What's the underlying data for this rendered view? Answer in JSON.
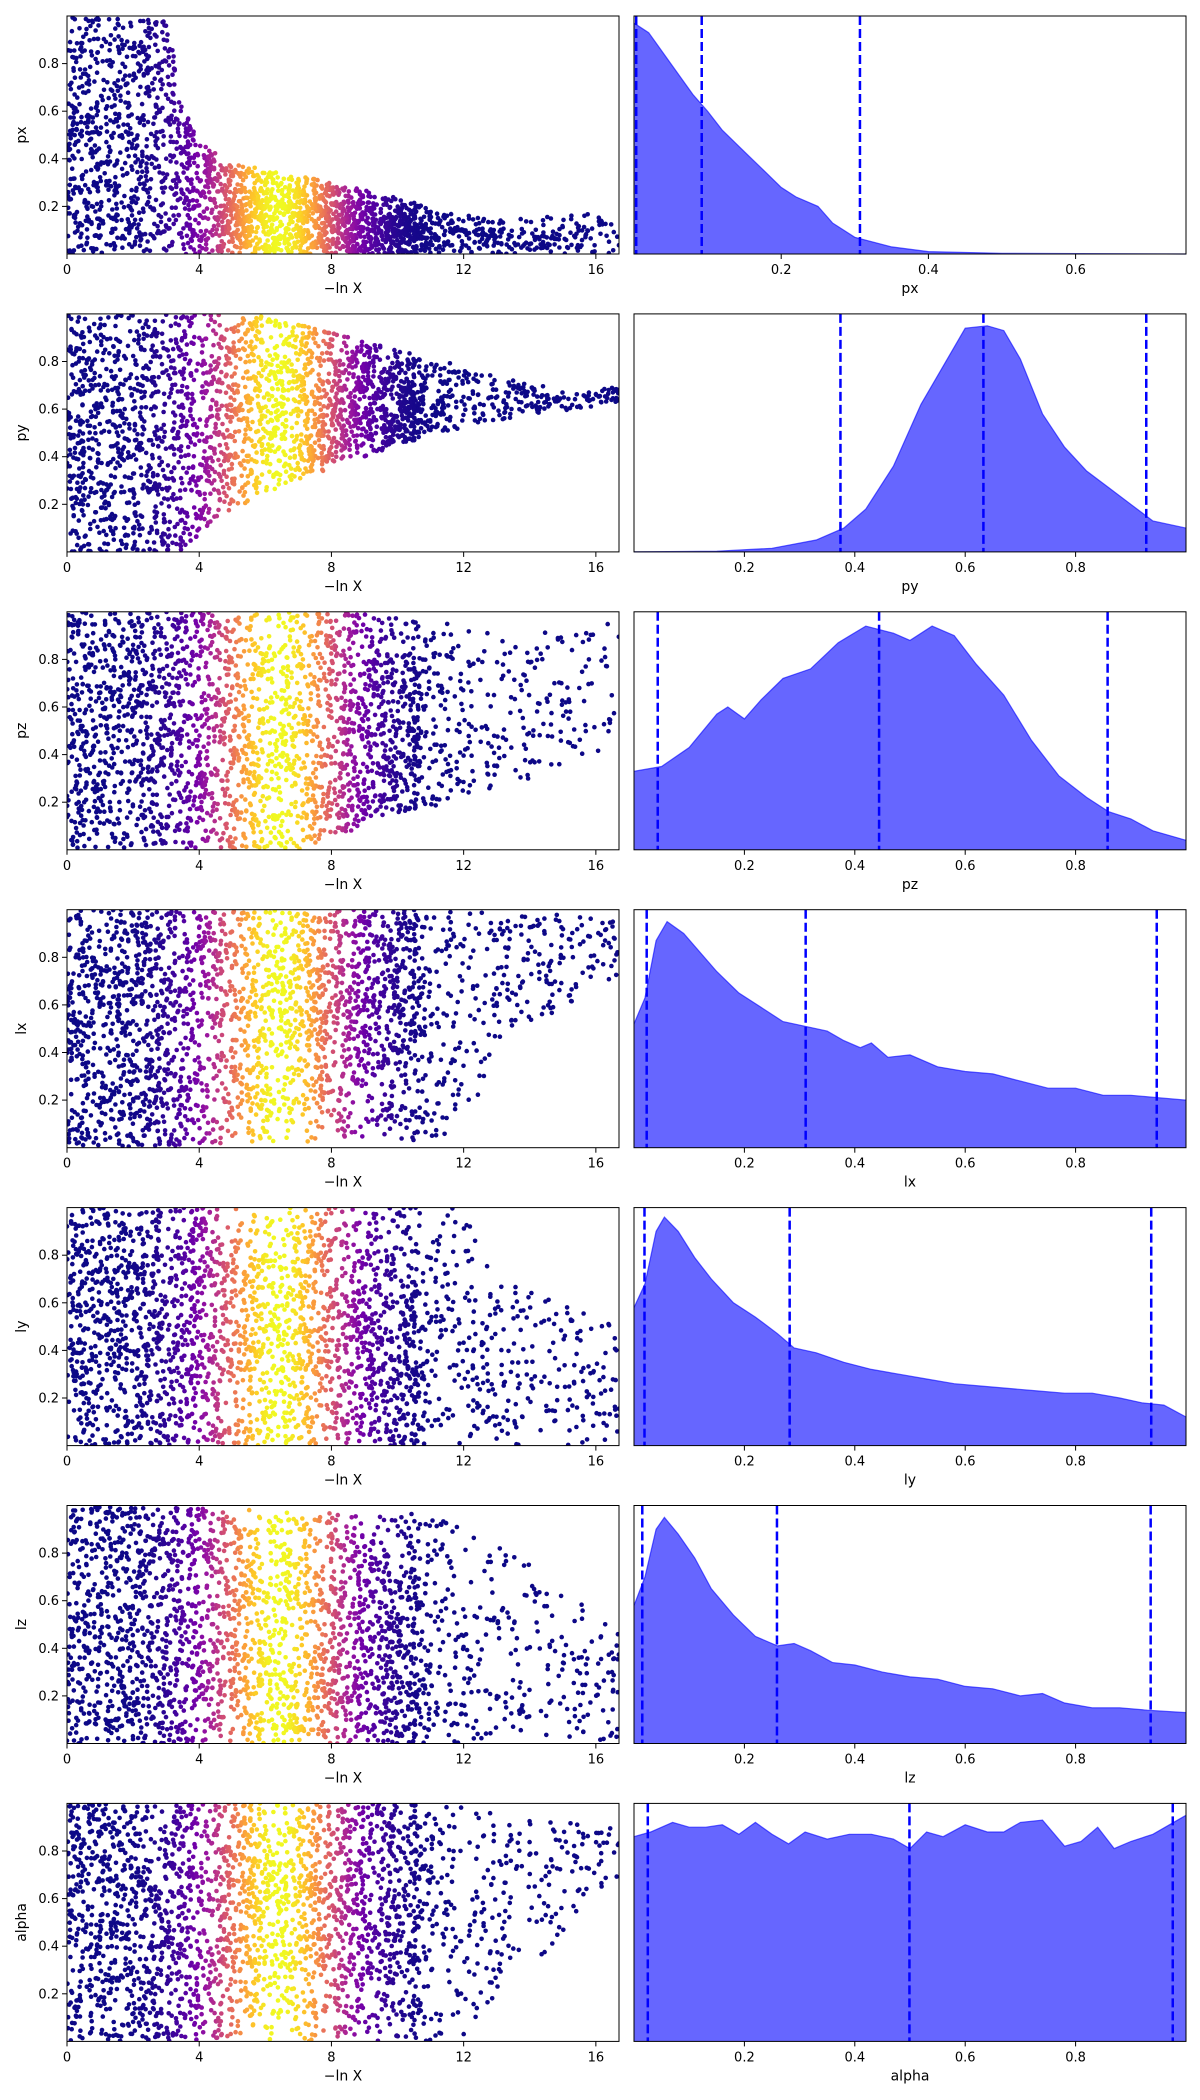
{
  "figure": {
    "trace_xlabel": "−ln X",
    "trace_xticks": [
      "0",
      "4",
      "8",
      "12",
      "16"
    ],
    "trace_xlim": [
      0,
      16.7
    ],
    "trace_ylim": [
      0,
      1
    ],
    "colormap": [
      "#0d0887",
      "#46039f",
      "#7201a8",
      "#9c179e",
      "#bd3786",
      "#d8576b",
      "#ed7953",
      "#fb9f3a",
      "#fdca26",
      "#f0f921"
    ],
    "posterior_fill": "#6666ff",
    "posterior_line": "#0000ff"
  },
  "chart_data": [
    {
      "type": "scatter",
      "param": "px",
      "xlabel": "−ln X",
      "ylabel": "px",
      "xlim": [
        0,
        16.7
      ],
      "ylim": [
        0,
        1
      ],
      "yticks": [
        "0.2",
        "0.4",
        "0.6",
        "0.8"
      ],
      "y_envelope": [
        [
          0,
          1.0
        ],
        [
          3.0,
          0.98
        ],
        [
          3.6,
          0.6
        ],
        [
          4.0,
          0.47
        ],
        [
          5.0,
          0.38
        ],
        [
          7.0,
          0.33
        ],
        [
          9.0,
          0.27
        ],
        [
          11.0,
          0.2
        ],
        [
          13.0,
          0.14
        ],
        [
          16.7,
          0.18
        ]
      ],
      "y_center": [
        [
          0,
          0.5
        ],
        [
          4.0,
          0.2
        ],
        [
          6.0,
          0.15
        ],
        [
          10.0,
          0.1
        ],
        [
          16.7,
          0.05
        ]
      ]
    },
    {
      "type": "area",
      "param": "px",
      "xlabel": "px",
      "xlim": [
        0.0,
        0.75
      ],
      "xticks": [
        "0.2",
        "0.4",
        "0.6"
      ],
      "quantiles": [
        0.003,
        0.092,
        0.307
      ],
      "density": [
        [
          0.0,
          0.97
        ],
        [
          0.02,
          0.93
        ],
        [
          0.05,
          0.8
        ],
        [
          0.08,
          0.67
        ],
        [
          0.1,
          0.6
        ],
        [
          0.12,
          0.52
        ],
        [
          0.15,
          0.43
        ],
        [
          0.18,
          0.34
        ],
        [
          0.2,
          0.28
        ],
        [
          0.22,
          0.24
        ],
        [
          0.25,
          0.2
        ],
        [
          0.27,
          0.13
        ],
        [
          0.3,
          0.07
        ],
        [
          0.35,
          0.03
        ],
        [
          0.4,
          0.01
        ],
        [
          0.5,
          0.003
        ],
        [
          0.75,
          0.0
        ]
      ]
    },
    {
      "type": "scatter",
      "param": "py",
      "xlabel": "−ln X",
      "ylabel": "py",
      "xlim": [
        0,
        16.7
      ],
      "ylim": [
        0,
        1
      ],
      "yticks": [
        "0.2",
        "0.4",
        "0.6",
        "0.8"
      ],
      "y_envelope": [
        [
          0,
          0.0,
          1.0
        ],
        [
          3.5,
          0.0,
          1.0
        ],
        [
          4.2,
          0.1,
          1.0
        ],
        [
          6.0,
          0.25,
          0.99
        ],
        [
          8.0,
          0.35,
          0.92
        ],
        [
          10.0,
          0.45,
          0.85
        ],
        [
          12.0,
          0.52,
          0.78
        ],
        [
          14.0,
          0.58,
          0.7
        ],
        [
          16.7,
          0.62,
          0.69
        ]
      ],
      "y_center": [
        [
          0,
          0.5
        ],
        [
          6.0,
          0.6
        ],
        [
          10.0,
          0.62
        ],
        [
          16.7,
          0.66
        ]
      ]
    },
    {
      "type": "area",
      "param": "py",
      "xlabel": "py",
      "xlim": [
        0.0,
        1.0
      ],
      "xticks": [
        "0.2",
        "0.4",
        "0.6",
        "0.8"
      ],
      "quantiles": [
        0.374,
        0.633,
        0.928
      ],
      "density": [
        [
          0.0,
          0.0
        ],
        [
          0.15,
          0.003
        ],
        [
          0.25,
          0.015
        ],
        [
          0.33,
          0.05
        ],
        [
          0.38,
          0.1
        ],
        [
          0.42,
          0.18
        ],
        [
          0.47,
          0.36
        ],
        [
          0.52,
          0.62
        ],
        [
          0.56,
          0.78
        ],
        [
          0.6,
          0.94
        ],
        [
          0.64,
          0.95
        ],
        [
          0.67,
          0.93
        ],
        [
          0.7,
          0.81
        ],
        [
          0.74,
          0.58
        ],
        [
          0.78,
          0.44
        ],
        [
          0.82,
          0.34
        ],
        [
          0.86,
          0.27
        ],
        [
          0.9,
          0.2
        ],
        [
          0.94,
          0.13
        ],
        [
          1.0,
          0.1
        ]
      ]
    },
    {
      "type": "scatter",
      "param": "pz",
      "xlabel": "−ln X",
      "ylabel": "pz",
      "xlim": [
        0,
        16.7
      ],
      "ylim": [
        0,
        1
      ],
      "yticks": [
        "0.2",
        "0.4",
        "0.6",
        "0.8"
      ],
      "y_envelope": [
        [
          0,
          0.0,
          1.0
        ],
        [
          7.0,
          0.0,
          1.0
        ],
        [
          8.0,
          0.05,
          1.0
        ],
        [
          10.0,
          0.15,
          0.98
        ],
        [
          12.0,
          0.2,
          0.95
        ],
        [
          14.0,
          0.3,
          0.9
        ],
        [
          16.7,
          0.45,
          0.98
        ]
      ],
      "y_center": [
        [
          0,
          0.5
        ],
        [
          8.0,
          0.48
        ],
        [
          12.0,
          0.52
        ],
        [
          16.7,
          0.7
        ]
      ]
    },
    {
      "type": "area",
      "param": "pz",
      "xlabel": "pz",
      "xlim": [
        0.0,
        1.0
      ],
      "xticks": [
        "0.2",
        "0.4",
        "0.6",
        "0.8"
      ],
      "quantiles": [
        0.043,
        0.444,
        0.858
      ],
      "density": [
        [
          0.0,
          0.33
        ],
        [
          0.05,
          0.35
        ],
        [
          0.1,
          0.43
        ],
        [
          0.15,
          0.57
        ],
        [
          0.17,
          0.6
        ],
        [
          0.2,
          0.55
        ],
        [
          0.23,
          0.63
        ],
        [
          0.27,
          0.72
        ],
        [
          0.32,
          0.76
        ],
        [
          0.37,
          0.87
        ],
        [
          0.42,
          0.94
        ],
        [
          0.47,
          0.91
        ],
        [
          0.5,
          0.88
        ],
        [
          0.54,
          0.94
        ],
        [
          0.58,
          0.9
        ],
        [
          0.62,
          0.78
        ],
        [
          0.67,
          0.65
        ],
        [
          0.72,
          0.46
        ],
        [
          0.77,
          0.31
        ],
        [
          0.82,
          0.22
        ],
        [
          0.86,
          0.16
        ],
        [
          0.9,
          0.13
        ],
        [
          0.94,
          0.08
        ],
        [
          1.0,
          0.04
        ]
      ]
    },
    {
      "type": "scatter",
      "param": "lx",
      "xlabel": "−ln X",
      "ylabel": "lx",
      "xlim": [
        0,
        16.7
      ],
      "ylim": [
        0,
        1
      ],
      "yticks": [
        "0.2",
        "0.4",
        "0.6",
        "0.8"
      ],
      "y_envelope": [
        [
          0,
          0.0,
          1.0
        ],
        [
          12.0,
          0.03,
          1.0
        ],
        [
          13.0,
          0.45,
          0.98
        ],
        [
          16.7,
          0.7,
          0.98
        ]
      ],
      "y_center": [
        [
          0,
          0.5
        ],
        [
          16.7,
          0.85
        ]
      ]
    },
    {
      "type": "area",
      "param": "lx",
      "xlabel": "lx",
      "xlim": [
        0.0,
        1.0
      ],
      "xticks": [
        "0.2",
        "0.4",
        "0.6",
        "0.8"
      ],
      "quantiles": [
        0.023,
        0.311,
        0.947
      ],
      "density": [
        [
          0.0,
          0.52
        ],
        [
          0.02,
          0.63
        ],
        [
          0.04,
          0.87
        ],
        [
          0.06,
          0.95
        ],
        [
          0.09,
          0.9
        ],
        [
          0.12,
          0.82
        ],
        [
          0.15,
          0.74
        ],
        [
          0.19,
          0.65
        ],
        [
          0.23,
          0.59
        ],
        [
          0.27,
          0.53
        ],
        [
          0.31,
          0.51
        ],
        [
          0.35,
          0.49
        ],
        [
          0.38,
          0.45
        ],
        [
          0.41,
          0.42
        ],
        [
          0.43,
          0.44
        ],
        [
          0.46,
          0.38
        ],
        [
          0.5,
          0.39
        ],
        [
          0.55,
          0.34
        ],
        [
          0.6,
          0.32
        ],
        [
          0.65,
          0.31
        ],
        [
          0.7,
          0.28
        ],
        [
          0.75,
          0.25
        ],
        [
          0.8,
          0.25
        ],
        [
          0.85,
          0.22
        ],
        [
          0.9,
          0.22
        ],
        [
          0.95,
          0.21
        ],
        [
          1.0,
          0.2
        ]
      ]
    },
    {
      "type": "scatter",
      "param": "ly",
      "xlabel": "−ln X",
      "ylabel": "ly",
      "xlim": [
        0,
        16.7
      ],
      "ylim": [
        0,
        1
      ],
      "yticks": [
        "0.2",
        "0.4",
        "0.6",
        "0.8"
      ],
      "y_envelope": [
        [
          0,
          0.0,
          1.0
        ],
        [
          12.0,
          0.0,
          1.0
        ],
        [
          13.0,
          0.0,
          0.7
        ],
        [
          16.7,
          0.0,
          0.5
        ]
      ],
      "y_center": [
        [
          0,
          0.5
        ],
        [
          16.7,
          0.25
        ]
      ]
    },
    {
      "type": "area",
      "param": "ly",
      "xlabel": "ly",
      "xlim": [
        0.0,
        1.0
      ],
      "xticks": [
        "0.2",
        "0.4",
        "0.6",
        "0.8"
      ],
      "quantiles": [
        0.019,
        0.282,
        0.937
      ],
      "density": [
        [
          0.0,
          0.58
        ],
        [
          0.02,
          0.68
        ],
        [
          0.04,
          0.9
        ],
        [
          0.055,
          0.96
        ],
        [
          0.08,
          0.9
        ],
        [
          0.11,
          0.79
        ],
        [
          0.14,
          0.7
        ],
        [
          0.18,
          0.6
        ],
        [
          0.22,
          0.54
        ],
        [
          0.26,
          0.47
        ],
        [
          0.29,
          0.41
        ],
        [
          0.33,
          0.39
        ],
        [
          0.38,
          0.35
        ],
        [
          0.43,
          0.32
        ],
        [
          0.48,
          0.3
        ],
        [
          0.53,
          0.28
        ],
        [
          0.58,
          0.26
        ],
        [
          0.63,
          0.25
        ],
        [
          0.68,
          0.24
        ],
        [
          0.73,
          0.23
        ],
        [
          0.78,
          0.22
        ],
        [
          0.83,
          0.22
        ],
        [
          0.88,
          0.2
        ],
        [
          0.92,
          0.18
        ],
        [
          0.96,
          0.17
        ],
        [
          1.0,
          0.12
        ]
      ]
    },
    {
      "type": "scatter",
      "param": "lz",
      "xlabel": "−ln X",
      "ylabel": "lz",
      "xlim": [
        0,
        16.7
      ],
      "ylim": [
        0,
        1
      ],
      "yticks": [
        "0.2",
        "0.4",
        "0.6",
        "0.8"
      ],
      "y_envelope": [
        [
          0,
          0.0,
          1.0
        ],
        [
          12.0,
          0.0,
          0.96
        ],
        [
          14.0,
          0.0,
          0.75
        ],
        [
          16.7,
          0.0,
          0.5
        ]
      ],
      "y_center": [
        [
          0,
          0.45
        ],
        [
          16.7,
          0.2
        ]
      ]
    },
    {
      "type": "area",
      "param": "lz",
      "xlabel": "lz",
      "xlim": [
        0.0,
        1.0
      ],
      "xticks": [
        "0.2",
        "0.4",
        "0.6",
        "0.8"
      ],
      "quantiles": [
        0.015,
        0.259,
        0.936
      ],
      "density": [
        [
          0.0,
          0.58
        ],
        [
          0.02,
          0.7
        ],
        [
          0.04,
          0.9
        ],
        [
          0.055,
          0.95
        ],
        [
          0.08,
          0.88
        ],
        [
          0.11,
          0.78
        ],
        [
          0.14,
          0.65
        ],
        [
          0.18,
          0.54
        ],
        [
          0.22,
          0.45
        ],
        [
          0.26,
          0.41
        ],
        [
          0.29,
          0.42
        ],
        [
          0.32,
          0.39
        ],
        [
          0.36,
          0.34
        ],
        [
          0.4,
          0.33
        ],
        [
          0.45,
          0.3
        ],
        [
          0.5,
          0.28
        ],
        [
          0.55,
          0.27
        ],
        [
          0.6,
          0.24
        ],
        [
          0.65,
          0.23
        ],
        [
          0.7,
          0.2
        ],
        [
          0.74,
          0.21
        ],
        [
          0.78,
          0.17
        ],
        [
          0.83,
          0.15
        ],
        [
          0.88,
          0.15
        ],
        [
          0.93,
          0.14
        ],
        [
          1.0,
          0.13
        ]
      ]
    },
    {
      "type": "scatter",
      "param": "alpha",
      "xlabel": "−ln X",
      "ylabel": "alpha",
      "xlim": [
        0,
        16.7
      ],
      "ylim": [
        0,
        1
      ],
      "yticks": [
        "0.2",
        "0.4",
        "0.6",
        "0.8"
      ],
      "y_envelope": [
        [
          0,
          0.0,
          1.0
        ],
        [
          12.0,
          0.0,
          1.0
        ],
        [
          14.0,
          0.3,
          0.95
        ],
        [
          16.7,
          0.7,
          0.9
        ]
      ],
      "y_center": [
        [
          0,
          0.5
        ],
        [
          16.7,
          0.8
        ]
      ]
    },
    {
      "type": "area",
      "param": "alpha",
      "xlabel": "alpha",
      "xlim": [
        0.0,
        1.0
      ],
      "xticks": [
        "0.2",
        "0.4",
        "0.6",
        "0.8"
      ],
      "quantiles": [
        0.025,
        0.499,
        0.976
      ],
      "density": [
        [
          0.0,
          0.86
        ],
        [
          0.03,
          0.88
        ],
        [
          0.07,
          0.92
        ],
        [
          0.1,
          0.9
        ],
        [
          0.13,
          0.9
        ],
        [
          0.16,
          0.91
        ],
        [
          0.19,
          0.87
        ],
        [
          0.22,
          0.92
        ],
        [
          0.25,
          0.87
        ],
        [
          0.28,
          0.83
        ],
        [
          0.31,
          0.88
        ],
        [
          0.35,
          0.85
        ],
        [
          0.39,
          0.87
        ],
        [
          0.43,
          0.87
        ],
        [
          0.47,
          0.85
        ],
        [
          0.5,
          0.81
        ],
        [
          0.53,
          0.88
        ],
        [
          0.56,
          0.86
        ],
        [
          0.6,
          0.91
        ],
        [
          0.64,
          0.88
        ],
        [
          0.67,
          0.88
        ],
        [
          0.7,
          0.92
        ],
        [
          0.74,
          0.93
        ],
        [
          0.78,
          0.82
        ],
        [
          0.81,
          0.84
        ],
        [
          0.84,
          0.9
        ],
        [
          0.87,
          0.81
        ],
        [
          0.9,
          0.84
        ],
        [
          0.94,
          0.87
        ],
        [
          0.97,
          0.91
        ],
        [
          1.0,
          0.95
        ]
      ]
    }
  ]
}
